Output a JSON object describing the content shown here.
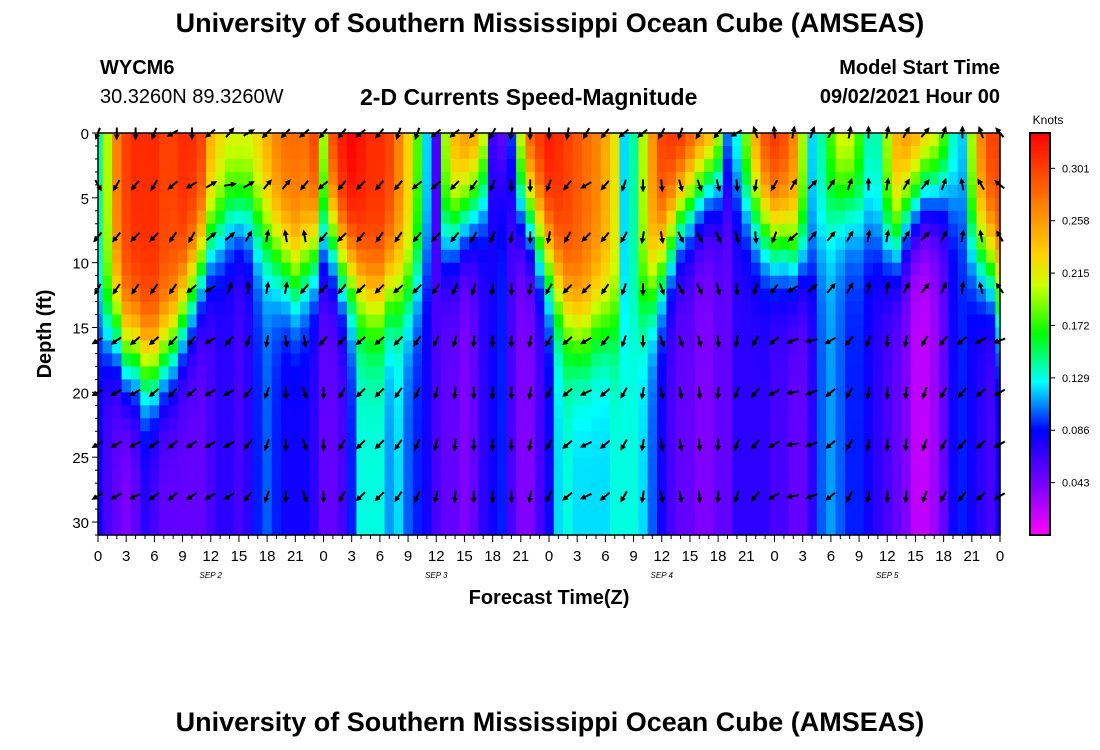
{
  "page": {
    "title_top": "University of Southern Mississippi Ocean Cube (AMSEAS)",
    "title_bottom": "University of Southern Mississippi Ocean Cube (AMSEAS)",
    "station_id": "WYCM6",
    "station_coords": "30.3260N  89.3260W",
    "plot_title": "2-D Currents Speed-Magnitude",
    "model_start_label": "Model Start Time",
    "model_start_value": "09/02/2021 Hour 00"
  },
  "chart_data": {
    "type": "heatmap",
    "title": "2-D Currents Speed-Magnitude",
    "xlabel": "Forecast Time(Z)",
    "ylabel": "Depth (ft)",
    "x_ticks": [
      "0",
      "3",
      "6",
      "9",
      "12",
      "15",
      "18",
      "21",
      "0",
      "3",
      "6",
      "9",
      "12",
      "15",
      "18",
      "21",
      "0",
      "3",
      "6",
      "9",
      "12",
      "15",
      "18",
      "21",
      "0",
      "3",
      "6",
      "9",
      "12",
      "15",
      "18",
      "21",
      "0"
    ],
    "day_labels": [
      {
        "label": "SEP 2",
        "hour": 12
      },
      {
        "label": "SEP 3",
        "hour": 36
      },
      {
        "label": "SEP 4",
        "hour": 60
      },
      {
        "label": "SEP 5",
        "hour": 84
      }
    ],
    "xlim_hours": [
      0,
      96
    ],
    "y_ticks": [
      0,
      5,
      10,
      15,
      20,
      25,
      30
    ],
    "ylim_ft": [
      0,
      31
    ],
    "colorbar": {
      "unit": "Knots",
      "ticks": [
        "0.301",
        "0.258",
        "0.215",
        "0.172",
        "0.129",
        "0.086",
        "0.043"
      ],
      "range": [
        0.0,
        0.33
      ]
    },
    "speed_profile": {
      "hours": [
        0,
        1,
        2,
        3,
        4,
        5,
        6,
        7,
        8,
        9,
        10,
        11,
        12,
        13,
        14,
        15,
        16,
        17,
        18,
        19,
        20,
        21,
        22,
        23,
        24,
        25,
        26,
        27,
        28,
        29,
        30,
        31,
        32,
        33,
        34,
        35,
        36,
        37,
        38,
        39,
        40,
        41,
        42,
        43,
        44,
        45,
        46,
        47,
        48,
        49,
        50,
        51,
        52,
        53,
        54,
        55,
        56,
        57,
        58,
        59,
        60,
        61,
        62,
        63,
        64,
        65,
        66,
        67,
        68,
        69,
        70,
        71,
        72,
        73,
        74,
        75,
        76,
        77,
        78,
        79,
        80,
        81,
        82,
        83,
        84,
        85,
        86,
        87,
        88,
        89,
        90,
        91,
        92,
        93,
        94,
        95,
        96
      ],
      "surface": [
        0.14,
        0.2,
        0.27,
        0.3,
        0.31,
        0.31,
        0.31,
        0.3,
        0.3,
        0.31,
        0.31,
        0.3,
        0.25,
        0.23,
        0.22,
        0.22,
        0.22,
        0.23,
        0.25,
        0.27,
        0.28,
        0.28,
        0.28,
        0.3,
        0.2,
        0.3,
        0.32,
        0.33,
        0.32,
        0.31,
        0.31,
        0.3,
        0.27,
        0.23,
        0.18,
        0.12,
        0.06,
        0.2,
        0.25,
        0.27,
        0.27,
        0.23,
        0.06,
        0.04,
        0.1,
        0.22,
        0.3,
        0.31,
        0.32,
        0.31,
        0.3,
        0.29,
        0.28,
        0.27,
        0.25,
        0.22,
        0.12,
        0.14,
        0.2,
        0.26,
        0.3,
        0.31,
        0.32,
        0.31,
        0.3,
        0.3,
        0.24,
        0.12,
        0.14,
        0.2,
        0.26,
        0.3,
        0.31,
        0.3,
        0.27,
        0.2,
        0.12,
        0.14,
        0.18,
        0.22,
        0.22,
        0.18,
        0.14,
        0.14,
        0.2,
        0.25,
        0.27,
        0.27,
        0.26,
        0.24,
        0.2,
        0.14,
        0.12,
        0.2,
        0.27,
        0.3,
        0.3
      ],
      "bottom": [
        0.08,
        0.06,
        0.05,
        0.04,
        0.05,
        0.07,
        0.06,
        0.05,
        0.05,
        0.05,
        0.05,
        0.05,
        0.06,
        0.07,
        0.07,
        0.06,
        0.07,
        0.09,
        0.1,
        0.09,
        0.08,
        0.08,
        0.08,
        0.07,
        0.05,
        0.05,
        0.06,
        0.09,
        0.13,
        0.13,
        0.13,
        0.11,
        0.12,
        0.1,
        0.09,
        0.08,
        0.06,
        0.05,
        0.05,
        0.04,
        0.05,
        0.07,
        0.08,
        0.09,
        0.06,
        0.04,
        0.04,
        0.06,
        0.08,
        0.12,
        0.13,
        0.12,
        0.12,
        0.12,
        0.12,
        0.13,
        0.13,
        0.13,
        0.12,
        0.1,
        0.08,
        0.06,
        0.05,
        0.05,
        0.04,
        0.04,
        0.05,
        0.05,
        0.07,
        0.07,
        0.07,
        0.07,
        0.06,
        0.06,
        0.05,
        0.05,
        0.07,
        0.1,
        0.11,
        0.1,
        0.09,
        0.09,
        0.08,
        0.07,
        0.06,
        0.05,
        0.04,
        0.02,
        0.02,
        0.03,
        0.05,
        0.08,
        0.09,
        0.08,
        0.07,
        0.06,
        0.08
      ],
      "depth_scale_ft": [
        14,
        15,
        15,
        17,
        17,
        18,
        18,
        17,
        16,
        14,
        12,
        10,
        8,
        7,
        6,
        6,
        6,
        7,
        8,
        9,
        10,
        11,
        10,
        9,
        8,
        8,
        10,
        11,
        12,
        13,
        13,
        12,
        12,
        12,
        11,
        10,
        9,
        8,
        7,
        6,
        5,
        4,
        3,
        3,
        4,
        5,
        6,
        8,
        10,
        12,
        14,
        15,
        15,
        14,
        14,
        14,
        14,
        13,
        13,
        12,
        10,
        8,
        6,
        5,
        4,
        3,
        3,
        3,
        4,
        5,
        6,
        7,
        8,
        8,
        9,
        9,
        10,
        8,
        6,
        5,
        5,
        6,
        7,
        8,
        8,
        8,
        6,
        5,
        4,
        4,
        4,
        5,
        6,
        8,
        9,
        10,
        12
      ]
    },
    "vector_depths_ft": [
      0,
      4,
      8,
      12,
      16,
      20,
      24,
      28
    ],
    "vector_hours": [
      0,
      1,
      2,
      3,
      4,
      5,
      6,
      7,
      8,
      9,
      10,
      11,
      12,
      13,
      14,
      15,
      16,
      17,
      18,
      19,
      20,
      21,
      22,
      23,
      24,
      25,
      26,
      27,
      28,
      29,
      30,
      31,
      32,
      33,
      34,
      35,
      36,
      37,
      38,
      39,
      40,
      41,
      42,
      43,
      44,
      45,
      46,
      47,
      48,
      49,
      50,
      51,
      52,
      53,
      54,
      55,
      56,
      57,
      58,
      59,
      60,
      61,
      62,
      63,
      64,
      65,
      66,
      67,
      68,
      69,
      70,
      71,
      72,
      73,
      74,
      75,
      76,
      77,
      78,
      79,
      80,
      81,
      82,
      83,
      84,
      85,
      86,
      87,
      88,
      89,
      90,
      91,
      92,
      93,
      94,
      95,
      96
    ],
    "vector_directions_deg": [
      [
        200,
        180,
        180,
        180,
        180,
        180,
        200,
        230,
        240,
        250,
        180,
        210,
        230,
        40,
        40,
        40,
        60,
        220,
        225,
        225,
        225,
        230,
        230,
        220,
        220,
        210,
        220,
        220,
        230,
        220,
        220,
        200,
        200,
        200,
        200,
        210,
        230,
        230,
        230,
        225,
        220,
        215,
        210,
        200,
        190,
        180,
        180,
        180,
        180,
        180,
        190,
        200,
        210,
        220,
        220,
        225,
        230,
        240,
        230,
        220,
        210,
        200,
        200,
        200,
        210,
        220,
        220,
        230,
        240,
        320,
        340,
        350,
        355,
        10,
        10,
        10,
        20,
        30,
        30,
        20,
        10,
        0,
        0,
        0,
        10,
        20,
        30,
        40,
        40,
        30,
        20,
        0,
        0,
        0,
        340,
        330,
        320
      ],
      [
        150,
        200,
        210,
        220,
        220,
        210,
        210,
        220,
        230,
        240,
        240,
        230,
        60,
        70,
        80,
        70,
        60,
        50,
        40,
        40,
        40,
        220,
        220,
        230,
        230,
        220,
        220,
        230,
        225,
        220,
        220,
        215,
        220,
        225,
        230,
        230,
        230,
        230,
        225,
        220,
        215,
        210,
        200,
        190,
        180,
        180,
        180,
        180,
        200,
        210,
        220,
        230,
        240,
        230,
        220,
        210,
        200,
        190,
        180,
        180,
        175,
        170,
        165,
        160,
        160,
        160,
        165,
        170,
        175,
        180,
        190,
        200,
        210,
        20,
        30,
        40,
        45,
        40,
        35,
        30,
        20,
        10,
        0,
        0,
        10,
        20,
        30,
        40,
        40,
        30,
        20,
        10,
        350,
        340,
        330,
        320,
        310
      ],
      [
        220,
        220,
        220,
        225,
        225,
        225,
        225,
        220,
        215,
        210,
        210,
        210,
        50,
        50,
        50,
        40,
        30,
        20,
        10,
        0,
        350,
        340,
        350,
        0,
        220,
        220,
        225,
        220,
        220,
        220,
        215,
        215,
        215,
        220,
        220,
        225,
        225,
        225,
        220,
        215,
        210,
        205,
        200,
        195,
        190,
        185,
        180,
        180,
        190,
        200,
        210,
        220,
        225,
        225,
        220,
        215,
        210,
        200,
        190,
        180,
        170,
        160,
        155,
        150,
        150,
        150,
        155,
        160,
        165,
        170,
        175,
        180,
        200,
        220,
        230,
        240,
        40,
        45,
        40,
        35,
        30,
        20,
        10,
        0,
        10,
        20,
        30,
        40,
        45,
        40,
        30,
        20,
        10,
        0,
        350,
        340,
        330
      ],
      [
        210,
        210,
        215,
        215,
        215,
        215,
        215,
        215,
        215,
        220,
        230,
        240,
        240,
        30,
        20,
        10,
        0,
        0,
        10,
        10,
        10,
        220,
        220,
        225,
        225,
        220,
        220,
        220,
        225,
        225,
        225,
        230,
        230,
        225,
        225,
        220,
        215,
        210,
        205,
        200,
        195,
        190,
        185,
        180,
        180,
        180,
        190,
        200,
        210,
        220,
        225,
        230,
        225,
        220,
        215,
        210,
        200,
        190,
        180,
        170,
        160,
        150,
        150,
        150,
        155,
        160,
        165,
        170,
        175,
        180,
        200,
        210,
        220,
        230,
        240,
        240,
        50,
        45,
        40,
        35,
        30,
        20,
        10,
        0,
        10,
        20,
        30,
        40,
        40,
        35,
        25,
        15,
        5,
        355,
        345,
        335,
        325
      ],
      [
        240,
        240,
        235,
        230,
        230,
        230,
        230,
        230,
        225,
        220,
        220,
        230,
        240,
        230,
        220,
        210,
        200,
        200,
        190,
        180,
        170,
        160,
        170,
        180,
        220,
        225,
        225,
        225,
        230,
        230,
        230,
        225,
        225,
        220,
        215,
        210,
        205,
        200,
        195,
        190,
        185,
        180,
        180,
        180,
        180,
        180,
        190,
        200,
        210,
        220,
        230,
        240,
        240,
        230,
        220,
        210,
        200,
        190,
        180,
        170,
        160,
        160,
        160,
        160,
        165,
        170,
        175,
        180,
        190,
        200,
        210,
        220,
        230,
        240,
        250,
        250,
        260,
        250,
        240,
        230,
        220,
        210,
        200,
        190,
        180,
        180,
        190,
        200,
        210,
        215,
        220,
        225,
        230,
        235,
        240,
        245,
        250
      ],
      [
        240,
        240,
        240,
        240,
        240,
        235,
        230,
        225,
        225,
        225,
        230,
        235,
        240,
        240,
        240,
        230,
        220,
        210,
        200,
        190,
        180,
        170,
        160,
        170,
        180,
        200,
        210,
        220,
        225,
        225,
        225,
        220,
        215,
        210,
        205,
        200,
        195,
        190,
        185,
        180,
        180,
        180,
        180,
        180,
        180,
        180,
        190,
        200,
        210,
        220,
        230,
        240,
        245,
        240,
        230,
        220,
        210,
        200,
        190,
        180,
        170,
        170,
        170,
        170,
        175,
        180,
        185,
        190,
        200,
        210,
        220,
        230,
        240,
        250,
        260,
        260,
        250,
        240,
        230,
        220,
        210,
        200,
        190,
        185,
        180,
        180,
        185,
        190,
        200,
        205,
        210,
        215,
        220,
        225,
        230,
        235,
        240
      ],
      [
        240,
        240,
        240,
        245,
        245,
        240,
        235,
        230,
        230,
        230,
        235,
        240,
        240,
        240,
        240,
        230,
        220,
        210,
        200,
        190,
        180,
        170,
        160,
        170,
        180,
        200,
        210,
        220,
        225,
        225,
        225,
        220,
        215,
        210,
        205,
        200,
        195,
        190,
        185,
        180,
        180,
        180,
        180,
        180,
        180,
        180,
        190,
        200,
        210,
        220,
        230,
        240,
        245,
        240,
        230,
        220,
        210,
        200,
        190,
        180,
        170,
        170,
        170,
        170,
        175,
        180,
        185,
        190,
        200,
        210,
        220,
        230,
        240,
        250,
        260,
        260,
        250,
        240,
        230,
        220,
        210,
        200,
        190,
        185,
        180,
        180,
        185,
        190,
        200,
        205,
        210,
        215,
        220,
        225,
        230,
        235,
        240
      ],
      [
        240,
        240,
        240,
        245,
        245,
        240,
        235,
        230,
        230,
        230,
        235,
        240,
        240,
        240,
        240,
        230,
        220,
        210,
        200,
        190,
        180,
        170,
        160,
        170,
        180,
        200,
        210,
        220,
        225,
        225,
        225,
        220,
        215,
        210,
        205,
        200,
        195,
        190,
        185,
        180,
        180,
        180,
        180,
        180,
        180,
        180,
        190,
        200,
        210,
        220,
        230,
        240,
        245,
        240,
        230,
        220,
        210,
        200,
        190,
        180,
        170,
        170,
        170,
        170,
        175,
        180,
        185,
        190,
        200,
        210,
        220,
        230,
        240,
        250,
        260,
        260,
        250,
        240,
        230,
        220,
        210,
        200,
        190,
        185,
        180,
        180,
        185,
        190,
        200,
        205,
        210,
        215,
        220,
        225,
        230,
        235,
        240
      ]
    ]
  }
}
